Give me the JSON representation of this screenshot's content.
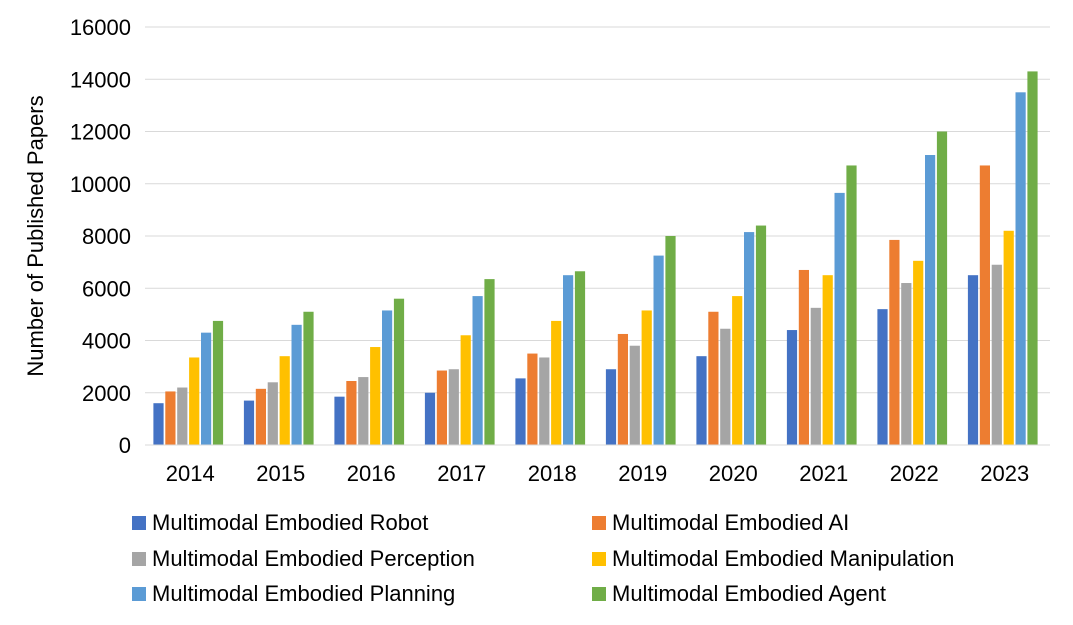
{
  "chart_data": {
    "type": "bar",
    "title": "",
    "xlabel": "",
    "ylabel": "Number of Published Papers",
    "ylim": [
      0,
      16000
    ],
    "yticks": [
      0,
      2000,
      4000,
      6000,
      8000,
      10000,
      12000,
      14000,
      16000
    ],
    "grid": true,
    "legend_position": "bottom",
    "categories": [
      "2014",
      "2015",
      "2016",
      "2017",
      "2018",
      "2019",
      "2020",
      "2021",
      "2022",
      "2023"
    ],
    "series": [
      {
        "name": "Multimodal Embodied Robot",
        "color": "#4472C4",
        "values": [
          1600,
          1700,
          1850,
          2000,
          2550,
          2900,
          3400,
          4400,
          5200,
          6500
        ]
      },
      {
        "name": "Multimodal Embodied AI",
        "color": "#ED7D31",
        "values": [
          2050,
          2150,
          2450,
          2850,
          3500,
          4250,
          5100,
          6700,
          7850,
          10700
        ]
      },
      {
        "name": "Multimodal Embodied Perception",
        "color": "#A5A5A5",
        "values": [
          2200,
          2400,
          2600,
          2900,
          3350,
          3800,
          4450,
          5250,
          6200,
          6900
        ]
      },
      {
        "name": "Multimodal Embodied Manipulation",
        "color": "#FFC000",
        "values": [
          3350,
          3400,
          3750,
          4200,
          4750,
          5150,
          5700,
          6500,
          7050,
          8200
        ]
      },
      {
        "name": "Multimodal Embodied Planning",
        "color": "#5B9BD5",
        "values": [
          4300,
          4600,
          5150,
          5700,
          6500,
          7250,
          8150,
          9650,
          11100,
          13500
        ]
      },
      {
        "name": "Multimodal Embodied Agent",
        "color": "#70AD47",
        "values": [
          4750,
          5100,
          5600,
          6350,
          6650,
          8000,
          8400,
          10700,
          12000,
          14300
        ]
      }
    ]
  }
}
